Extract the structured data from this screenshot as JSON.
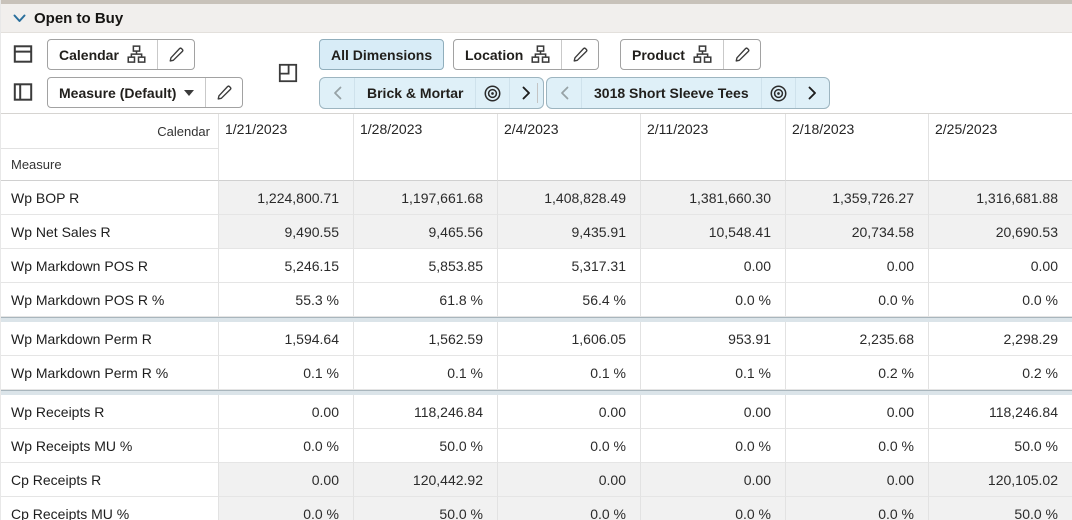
{
  "title": "Open to Buy",
  "toolbar": {
    "row_axis_button": "Calendar",
    "col_axis_button": "Measure (Default)",
    "all_dimensions_button": "All Dimensions",
    "location_button": "Location",
    "product_button": "Product",
    "location_chip_label": "Brick & Mortar",
    "product_chip_label": "3018 Short Sleeve Tees"
  },
  "colors": {
    "accent_blue": "#2a6f9c",
    "chip_bg": "#dff0f8",
    "active_button_bg": "#d8ecf7",
    "shaded_cell_bg": "#f1f1f1",
    "title_band_bg": "#f1efed",
    "top_strip": "#c8c2ba",
    "separator_band": "#dbe4e9"
  },
  "table": {
    "corner_top_label": "Calendar",
    "corner_bottom_label": "Measure",
    "columns": [
      "1/21/2023",
      "1/28/2023",
      "2/4/2023",
      "2/11/2023",
      "2/18/2023",
      "2/25/2023"
    ],
    "rows": [
      {
        "label": "Wp BOP R",
        "shaded": true,
        "separator_after": false,
        "values": [
          "1,224,800.71",
          "1,197,661.68",
          "1,408,828.49",
          "1,381,660.30",
          "1,359,726.27",
          "1,316,681.88"
        ]
      },
      {
        "label": "Wp Net Sales R",
        "shaded": true,
        "separator_after": false,
        "values": [
          "9,490.55",
          "9,465.56",
          "9,435.91",
          "10,548.41",
          "20,734.58",
          "20,690.53"
        ]
      },
      {
        "label": "Wp Markdown POS R",
        "shaded": false,
        "separator_after": false,
        "values": [
          "5,246.15",
          "5,853.85",
          "5,317.31",
          "0.00",
          "0.00",
          "0.00"
        ]
      },
      {
        "label": "Wp Markdown POS R %",
        "shaded": false,
        "separator_after": true,
        "values": [
          "55.3 %",
          "61.8 %",
          "56.4 %",
          "0.0 %",
          "0.0 %",
          "0.0 %"
        ]
      },
      {
        "label": "Wp Markdown Perm R",
        "shaded": false,
        "separator_after": false,
        "values": [
          "1,594.64",
          "1,562.59",
          "1,606.05",
          "953.91",
          "2,235.68",
          "2,298.29"
        ]
      },
      {
        "label": "Wp Markdown Perm R %",
        "shaded": false,
        "separator_after": true,
        "values": [
          "0.1 %",
          "0.1 %",
          "0.1 %",
          "0.1 %",
          "0.2 %",
          "0.2 %"
        ]
      },
      {
        "label": "Wp Receipts R",
        "shaded": false,
        "separator_after": false,
        "values": [
          "0.00",
          "118,246.84",
          "0.00",
          "0.00",
          "0.00",
          "118,246.84"
        ]
      },
      {
        "label": "Wp Receipts MU %",
        "shaded": false,
        "separator_after": false,
        "values": [
          "0.0 %",
          "50.0 %",
          "0.0 %",
          "0.0 %",
          "0.0 %",
          "50.0 %"
        ]
      },
      {
        "label": "Cp Receipts R",
        "shaded": true,
        "separator_after": false,
        "values": [
          "0.00",
          "120,442.92",
          "0.00",
          "0.00",
          "0.00",
          "120,105.02"
        ]
      },
      {
        "label": "Cp Receipts MU %",
        "shaded": true,
        "separator_after": false,
        "values": [
          "0.0 %",
          "50.0 %",
          "0.0 %",
          "0.0 %",
          "0.0 %",
          "50.0 %"
        ]
      }
    ]
  }
}
